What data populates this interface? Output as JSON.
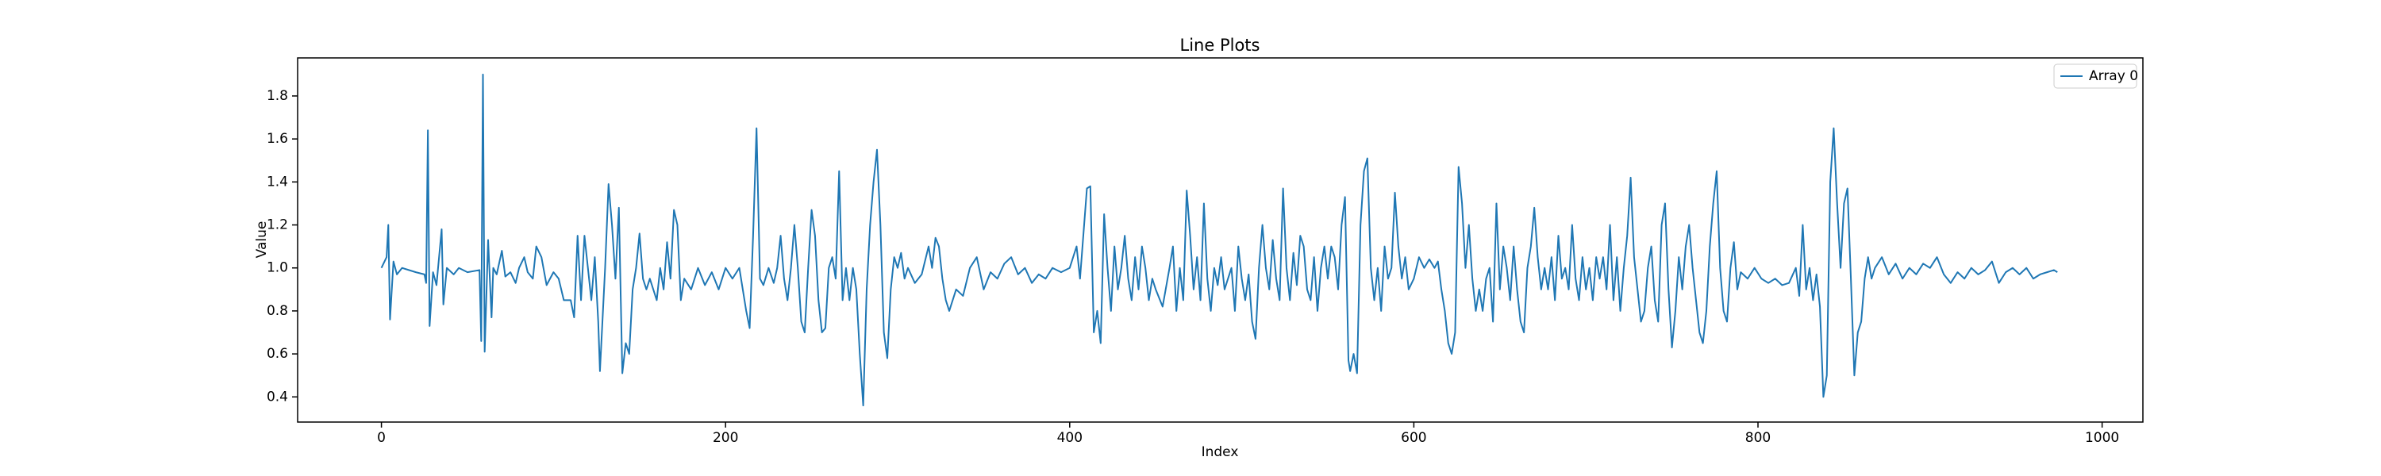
{
  "chart_data": {
    "type": "line",
    "title": "Line Plots",
    "x_label": "Index",
    "y_label": "Value",
    "xlim": [
      -48.7,
      1023.7
    ],
    "ylim": [
      0.283,
      1.977
    ],
    "xticks": [
      0,
      200,
      400,
      600,
      800,
      1000
    ],
    "yticks": [
      0.4,
      0.6,
      0.8,
      {
        "value": 1,
        "label": "1.0"
      },
      1.2,
      1.4,
      1.6,
      1.8
    ],
    "legend": "upper right",
    "grid": false,
    "x": [
      0,
      3,
      4,
      5,
      7,
      9,
      12,
      20,
      25,
      26,
      27,
      28,
      30,
      32,
      35,
      36,
      38,
      42,
      45,
      50,
      57,
      58,
      59,
      60,
      62,
      64,
      65,
      67,
      70,
      72,
      75,
      78,
      80,
      83,
      85,
      88,
      90,
      93,
      96,
      100,
      103,
      106,
      110,
      112,
      114,
      116,
      118,
      120,
      122,
      124,
      126,
      127,
      130,
      132,
      134,
      136,
      138,
      140,
      142,
      144,
      146,
      148,
      150,
      152,
      154,
      156,
      160,
      162,
      164,
      166,
      168,
      170,
      172,
      174,
      176,
      180,
      184,
      188,
      192,
      196,
      200,
      204,
      208,
      212,
      214,
      216,
      218,
      220,
      222,
      225,
      228,
      230,
      232,
      234,
      236,
      238,
      240,
      242,
      244,
      246,
      248,
      250,
      252,
      254,
      256,
      258,
      260,
      262,
      264,
      266,
      268,
      270,
      272,
      274,
      276,
      278,
      280,
      282,
      284,
      286,
      288,
      290,
      292,
      294,
      296,
      298,
      300,
      302,
      304,
      306,
      310,
      314,
      318,
      320,
      322,
      324,
      326,
      328,
      330,
      334,
      338,
      342,
      346,
      350,
      354,
      358,
      362,
      366,
      370,
      374,
      378,
      382,
      386,
      390,
      395,
      400,
      404,
      406,
      410,
      412,
      414,
      416,
      418,
      420,
      422,
      424,
      426,
      428,
      430,
      432,
      434,
      436,
      438,
      440,
      442,
      444,
      446,
      448,
      450,
      454,
      458,
      460,
      462,
      464,
      466,
      468,
      470,
      472,
      474,
      476,
      478,
      480,
      482,
      484,
      486,
      488,
      490,
      494,
      496,
      498,
      500,
      502,
      504,
      506,
      508,
      510,
      512,
      514,
      516,
      518,
      520,
      522,
      524,
      526,
      528,
      530,
      532,
      534,
      536,
      538,
      540,
      542,
      544,
      546,
      548,
      550,
      552,
      554,
      556,
      558,
      560,
      562,
      563,
      565,
      567,
      569,
      571,
      573,
      575,
      577,
      579,
      581,
      583,
      585,
      587,
      589,
      591,
      593,
      595,
      597,
      600,
      603,
      606,
      609,
      612,
      614,
      616,
      618,
      620,
      622,
      624,
      626,
      628,
      630,
      632,
      634,
      636,
      638,
      640,
      642,
      644,
      646,
      648,
      650,
      652,
      654,
      656,
      658,
      660,
      662,
      664,
      666,
      668,
      670,
      672,
      674,
      676,
      678,
      680,
      682,
      684,
      686,
      688,
      690,
      692,
      694,
      696,
      698,
      700,
      702,
      704,
      706,
      708,
      710,
      712,
      714,
      716,
      718,
      720,
      722,
      724,
      726,
      728,
      730,
      732,
      734,
      736,
      738,
      740,
      742,
      744,
      746,
      748,
      750,
      752,
      754,
      756,
      758,
      760,
      762,
      764,
      766,
      768,
      770,
      772,
      774,
      776,
      778,
      780,
      782,
      784,
      786,
      788,
      790,
      794,
      798,
      802,
      806,
      810,
      814,
      818,
      822,
      824,
      826,
      828,
      830,
      832,
      834,
      836,
      838,
      840,
      842,
      844,
      846,
      848,
      850,
      852,
      854,
      856,
      858,
      860,
      862,
      864,
      866,
      868,
      872,
      876,
      880,
      884,
      888,
      892,
      896,
      900,
      904,
      908,
      912,
      916,
      920,
      924,
      928,
      932,
      936,
      940,
      944,
      948,
      952,
      956,
      960,
      964,
      968,
      972,
      974
    ],
    "series": [
      {
        "name": "Array 0",
        "color": "#1f77b4",
        "values": [
          1.0,
          1.05,
          1.2,
          0.76,
          1.03,
          0.97,
          1.0,
          0.98,
          0.97,
          0.93,
          1.64,
          0.73,
          0.98,
          0.92,
          1.18,
          0.83,
          1.0,
          0.97,
          1.0,
          0.98,
          0.99,
          0.66,
          1.9,
          0.61,
          1.13,
          0.77,
          1.0,
          0.97,
          1.08,
          0.96,
          0.98,
          0.93,
          1.0,
          1.05,
          0.98,
          0.95,
          1.1,
          1.05,
          0.92,
          0.98,
          0.95,
          0.85,
          0.85,
          0.77,
          1.15,
          0.85,
          1.15,
          1.0,
          0.85,
          1.05,
          0.75,
          0.52,
          1.0,
          1.39,
          1.2,
          0.95,
          1.28,
          0.51,
          0.65,
          0.6,
          0.9,
          1.0,
          1.16,
          0.95,
          0.9,
          0.95,
          0.85,
          1.0,
          0.9,
          1.12,
          0.95,
          1.27,
          1.2,
          0.85,
          0.95,
          0.9,
          1.0,
          0.92,
          0.98,
          0.9,
          1.0,
          0.95,
          1.0,
          0.8,
          0.72,
          1.15,
          1.65,
          0.95,
          0.92,
          1.0,
          0.93,
          1.0,
          1.15,
          0.95,
          0.85,
          1.0,
          1.2,
          1.0,
          0.75,
          0.7,
          1.0,
          1.27,
          1.15,
          0.85,
          0.7,
          0.72,
          1.0,
          1.05,
          0.95,
          1.45,
          0.85,
          1.0,
          0.85,
          1.0,
          0.9,
          0.6,
          0.36,
          0.9,
          1.2,
          1.4,
          1.55,
          1.2,
          0.7,
          0.58,
          0.9,
          1.05,
          1.0,
          1.07,
          0.95,
          1.0,
          0.93,
          0.97,
          1.1,
          1.0,
          1.14,
          1.1,
          0.95,
          0.85,
          0.8,
          0.9,
          0.87,
          1.0,
          1.05,
          0.9,
          0.98,
          0.95,
          1.02,
          1.05,
          0.97,
          1.0,
          0.93,
          0.97,
          0.95,
          1.0,
          0.98,
          1.0,
          1.1,
          0.95,
          1.37,
          1.38,
          0.7,
          0.8,
          0.65,
          1.25,
          1.0,
          0.8,
          1.1,
          0.9,
          1.0,
          1.15,
          0.95,
          0.85,
          1.05,
          0.9,
          1.1,
          1.0,
          0.85,
          0.95,
          0.9,
          0.82,
          1.0,
          1.1,
          0.8,
          1.0,
          0.85,
          1.36,
          1.15,
          0.9,
          1.05,
          0.85,
          1.3,
          0.95,
          0.8,
          1.0,
          0.92,
          1.05,
          0.9,
          1.0,
          0.8,
          1.1,
          0.95,
          0.85,
          0.97,
          0.75,
          0.67,
          1.0,
          1.2,
          1.0,
          0.9,
          1.13,
          0.95,
          0.85,
          1.37,
          1.0,
          0.85,
          1.07,
          0.92,
          1.15,
          1.1,
          0.9,
          0.85,
          1.05,
          0.8,
          1.0,
          1.1,
          0.95,
          1.1,
          1.05,
          0.9,
          1.2,
          1.33,
          0.57,
          0.52,
          0.6,
          0.51,
          1.2,
          1.45,
          1.51,
          1.0,
          0.85,
          1.0,
          0.8,
          1.1,
          0.95,
          1.0,
          1.35,
          1.1,
          0.95,
          1.05,
          0.9,
          0.95,
          1.05,
          1.0,
          1.04,
          1.0,
          1.03,
          0.9,
          0.8,
          0.65,
          0.6,
          0.7,
          1.47,
          1.3,
          1.0,
          1.2,
          0.95,
          0.8,
          0.9,
          0.8,
          0.95,
          1.0,
          0.75,
          1.3,
          0.9,
          1.1,
          1.0,
          0.85,
          1.1,
          0.9,
          0.75,
          0.7,
          1.0,
          1.1,
          1.28,
          1.05,
          0.9,
          1.0,
          0.9,
          1.05,
          0.85,
          1.15,
          0.95,
          1.0,
          0.9,
          1.2,
          0.95,
          0.85,
          1.05,
          0.9,
          1.0,
          0.85,
          1.05,
          0.95,
          1.05,
          0.9,
          1.2,
          0.85,
          1.05,
          0.8,
          1.0,
          1.15,
          1.42,
          1.05,
          0.9,
          0.75,
          0.8,
          1.0,
          1.1,
          0.85,
          0.75,
          1.2,
          1.3,
          0.9,
          0.63,
          0.8,
          1.05,
          0.9,
          1.1,
          1.2,
          1.0,
          0.85,
          0.7,
          0.65,
          0.8,
          1.1,
          1.3,
          1.45,
          1.0,
          0.8,
          0.75,
          1.0,
          1.12,
          0.9,
          0.98,
          0.95,
          1.0,
          0.95,
          0.93,
          0.95,
          0.92,
          0.93,
          1.0,
          0.87,
          1.2,
          0.9,
          1.0,
          0.85,
          0.97,
          0.82,
          0.4,
          0.5,
          1.4,
          1.65,
          1.3,
          1.0,
          1.3,
          1.37,
          0.95,
          0.5,
          0.7,
          0.75,
          0.95,
          1.05,
          0.95,
          1.0,
          1.05,
          0.97,
          1.02,
          0.95,
          1.0,
          0.97,
          1.02,
          1.0,
          1.05,
          0.97,
          0.93,
          0.98,
          0.95,
          1.0,
          0.97,
          0.99,
          1.03,
          0.93,
          0.98,
          1.0,
          0.97,
          1.0,
          0.95,
          0.97,
          0.98,
          0.99,
          0.98
        ]
      }
    ]
  }
}
